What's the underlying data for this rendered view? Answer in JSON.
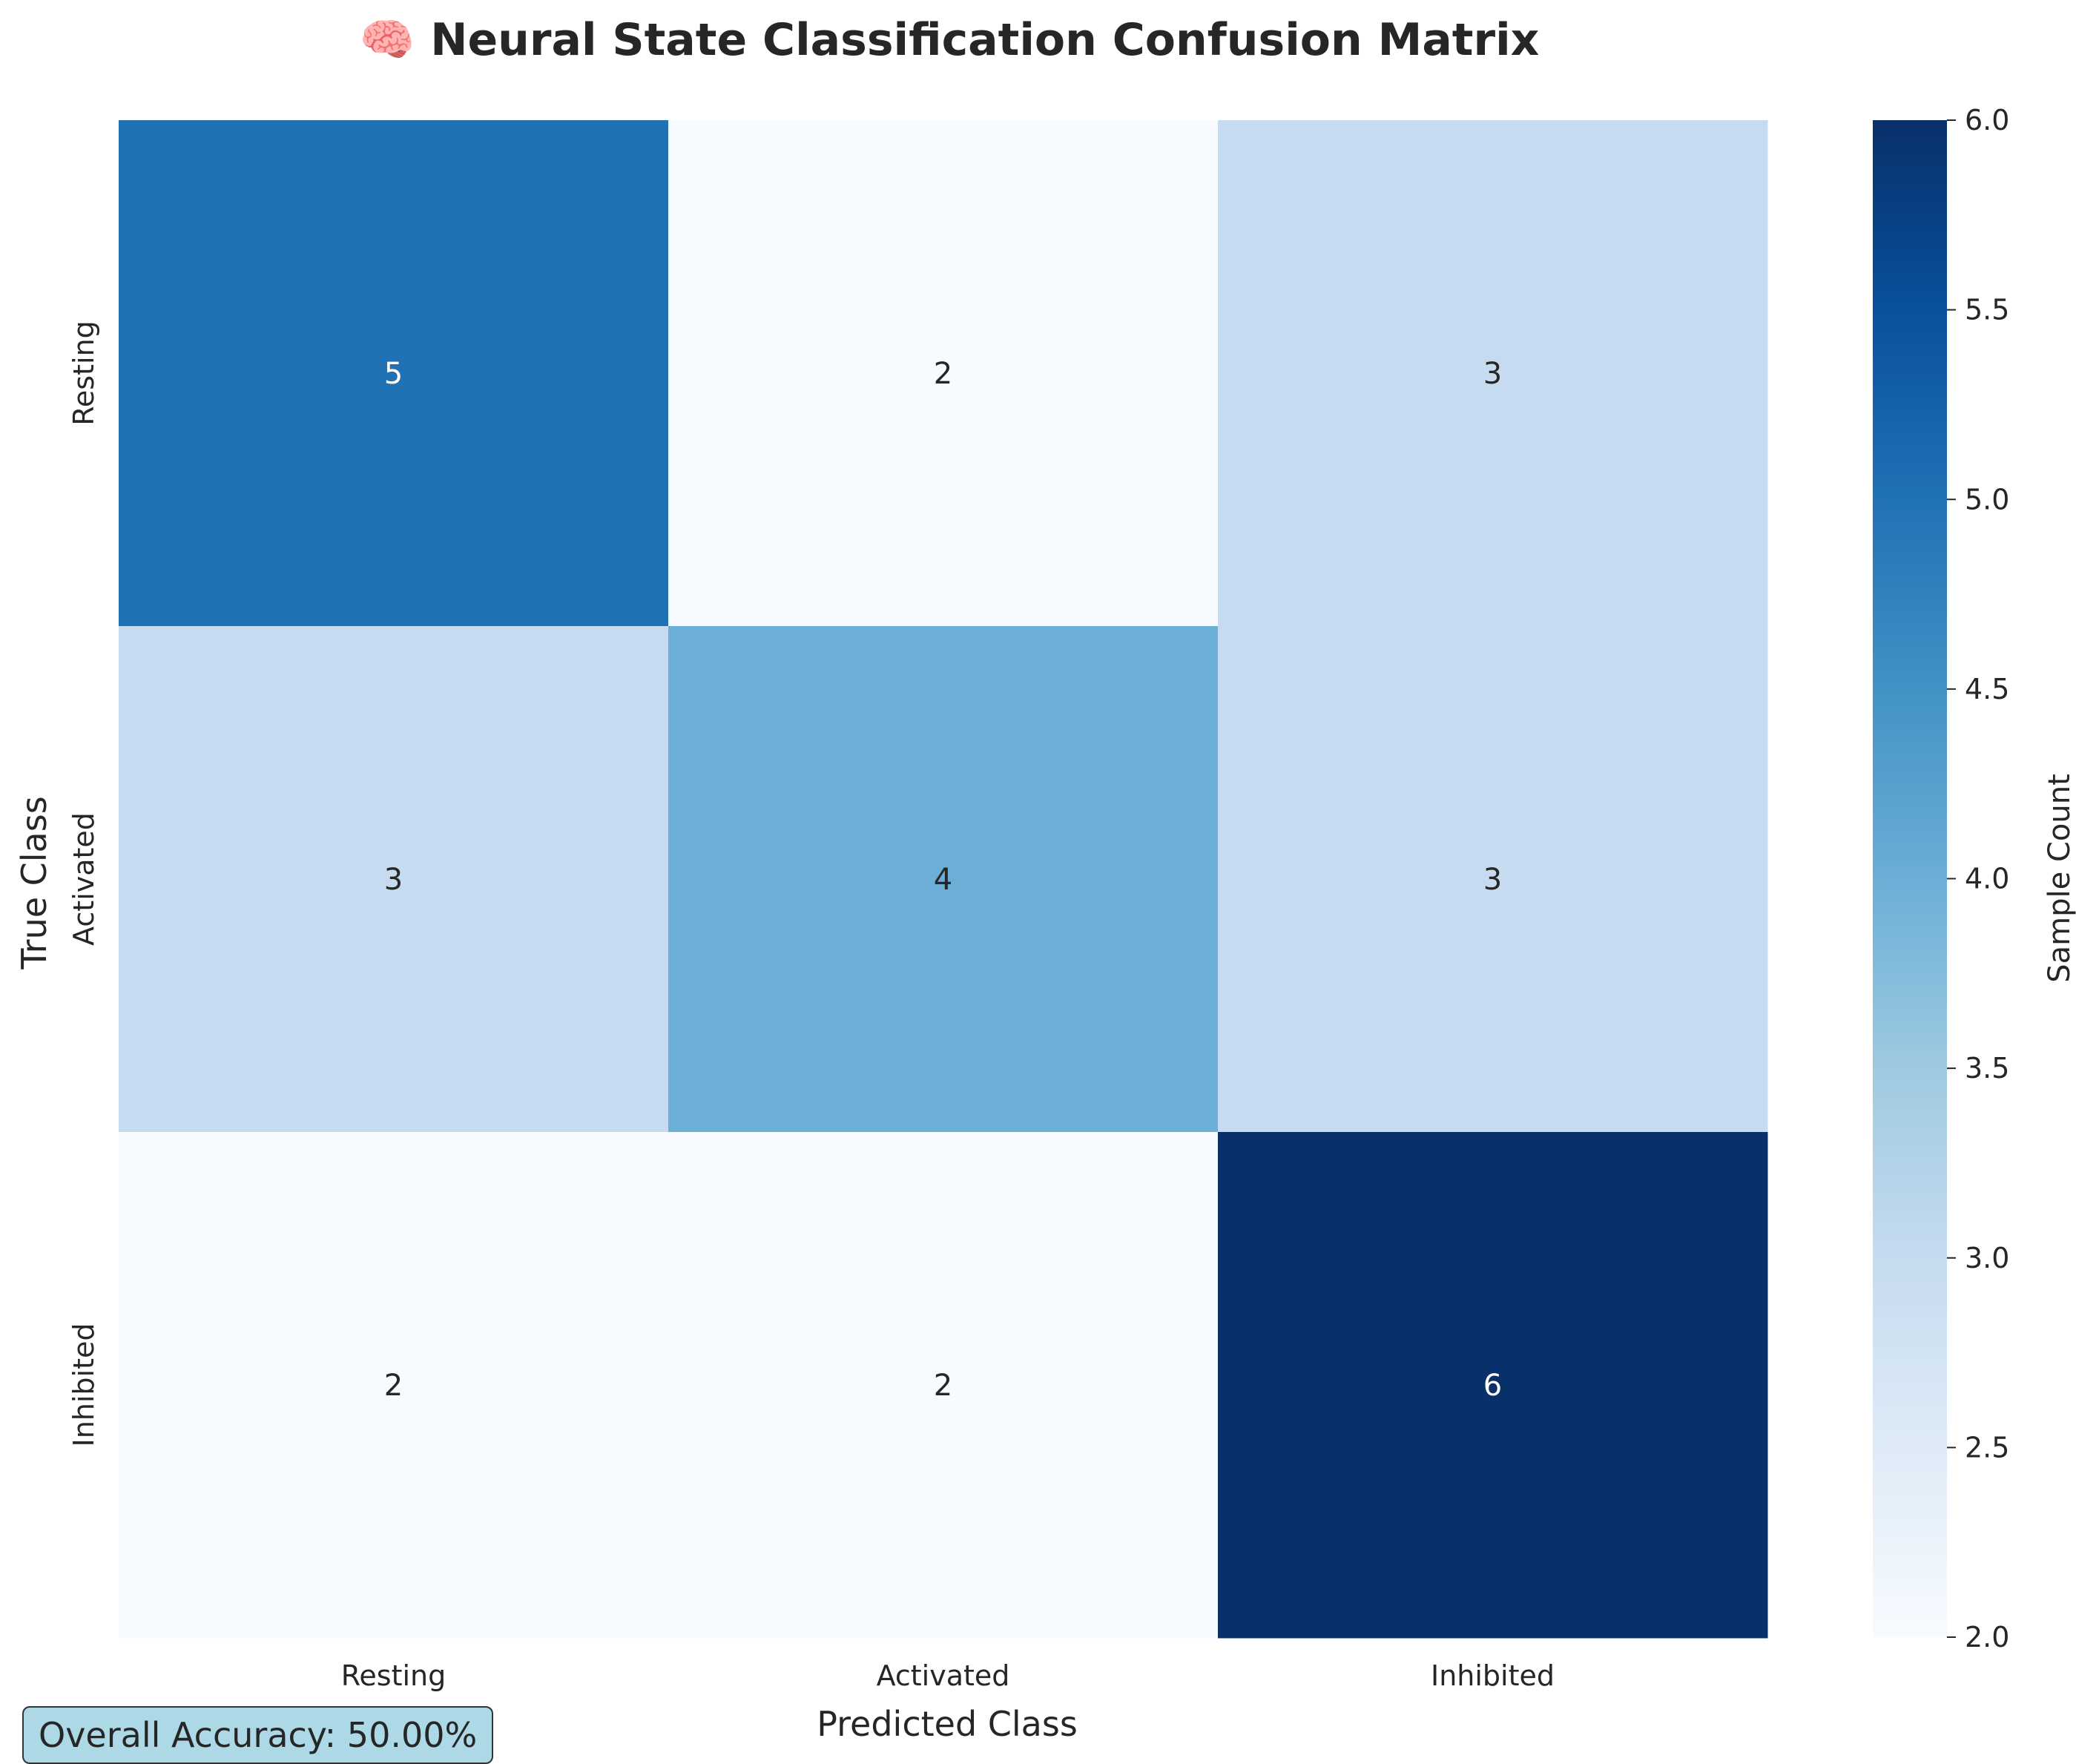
{
  "chart_data": {
    "type": "heatmap",
    "title": "🧠 Neural State Classification Confusion Matrix",
    "xlabel": "Predicted Class",
    "ylabel": "True Class",
    "x_categories": [
      "Resting",
      "Activated",
      "Inhibited"
    ],
    "y_categories": [
      "Resting",
      "Activated",
      "Inhibited"
    ],
    "values": [
      [
        5,
        2,
        3
      ],
      [
        3,
        4,
        3
      ],
      [
        2,
        2,
        6
      ]
    ],
    "colormap": "Blues",
    "colorbar": {
      "label": "Sample Count",
      "range": [
        2.0,
        6.0
      ],
      "ticks": [
        "2.0",
        "2.5",
        "3.0",
        "3.5",
        "4.0",
        "4.5",
        "5.0",
        "5.5",
        "6.0"
      ]
    }
  },
  "annotation": {
    "accuracy_text": "Overall Accuracy: 50.00%"
  },
  "colors": {
    "low": "#f7fbff",
    "three": "#c6dbef",
    "four": "#6baed6",
    "five": "#2171b5",
    "high": "#08306b",
    "accuracy_box": "#add8e6"
  }
}
